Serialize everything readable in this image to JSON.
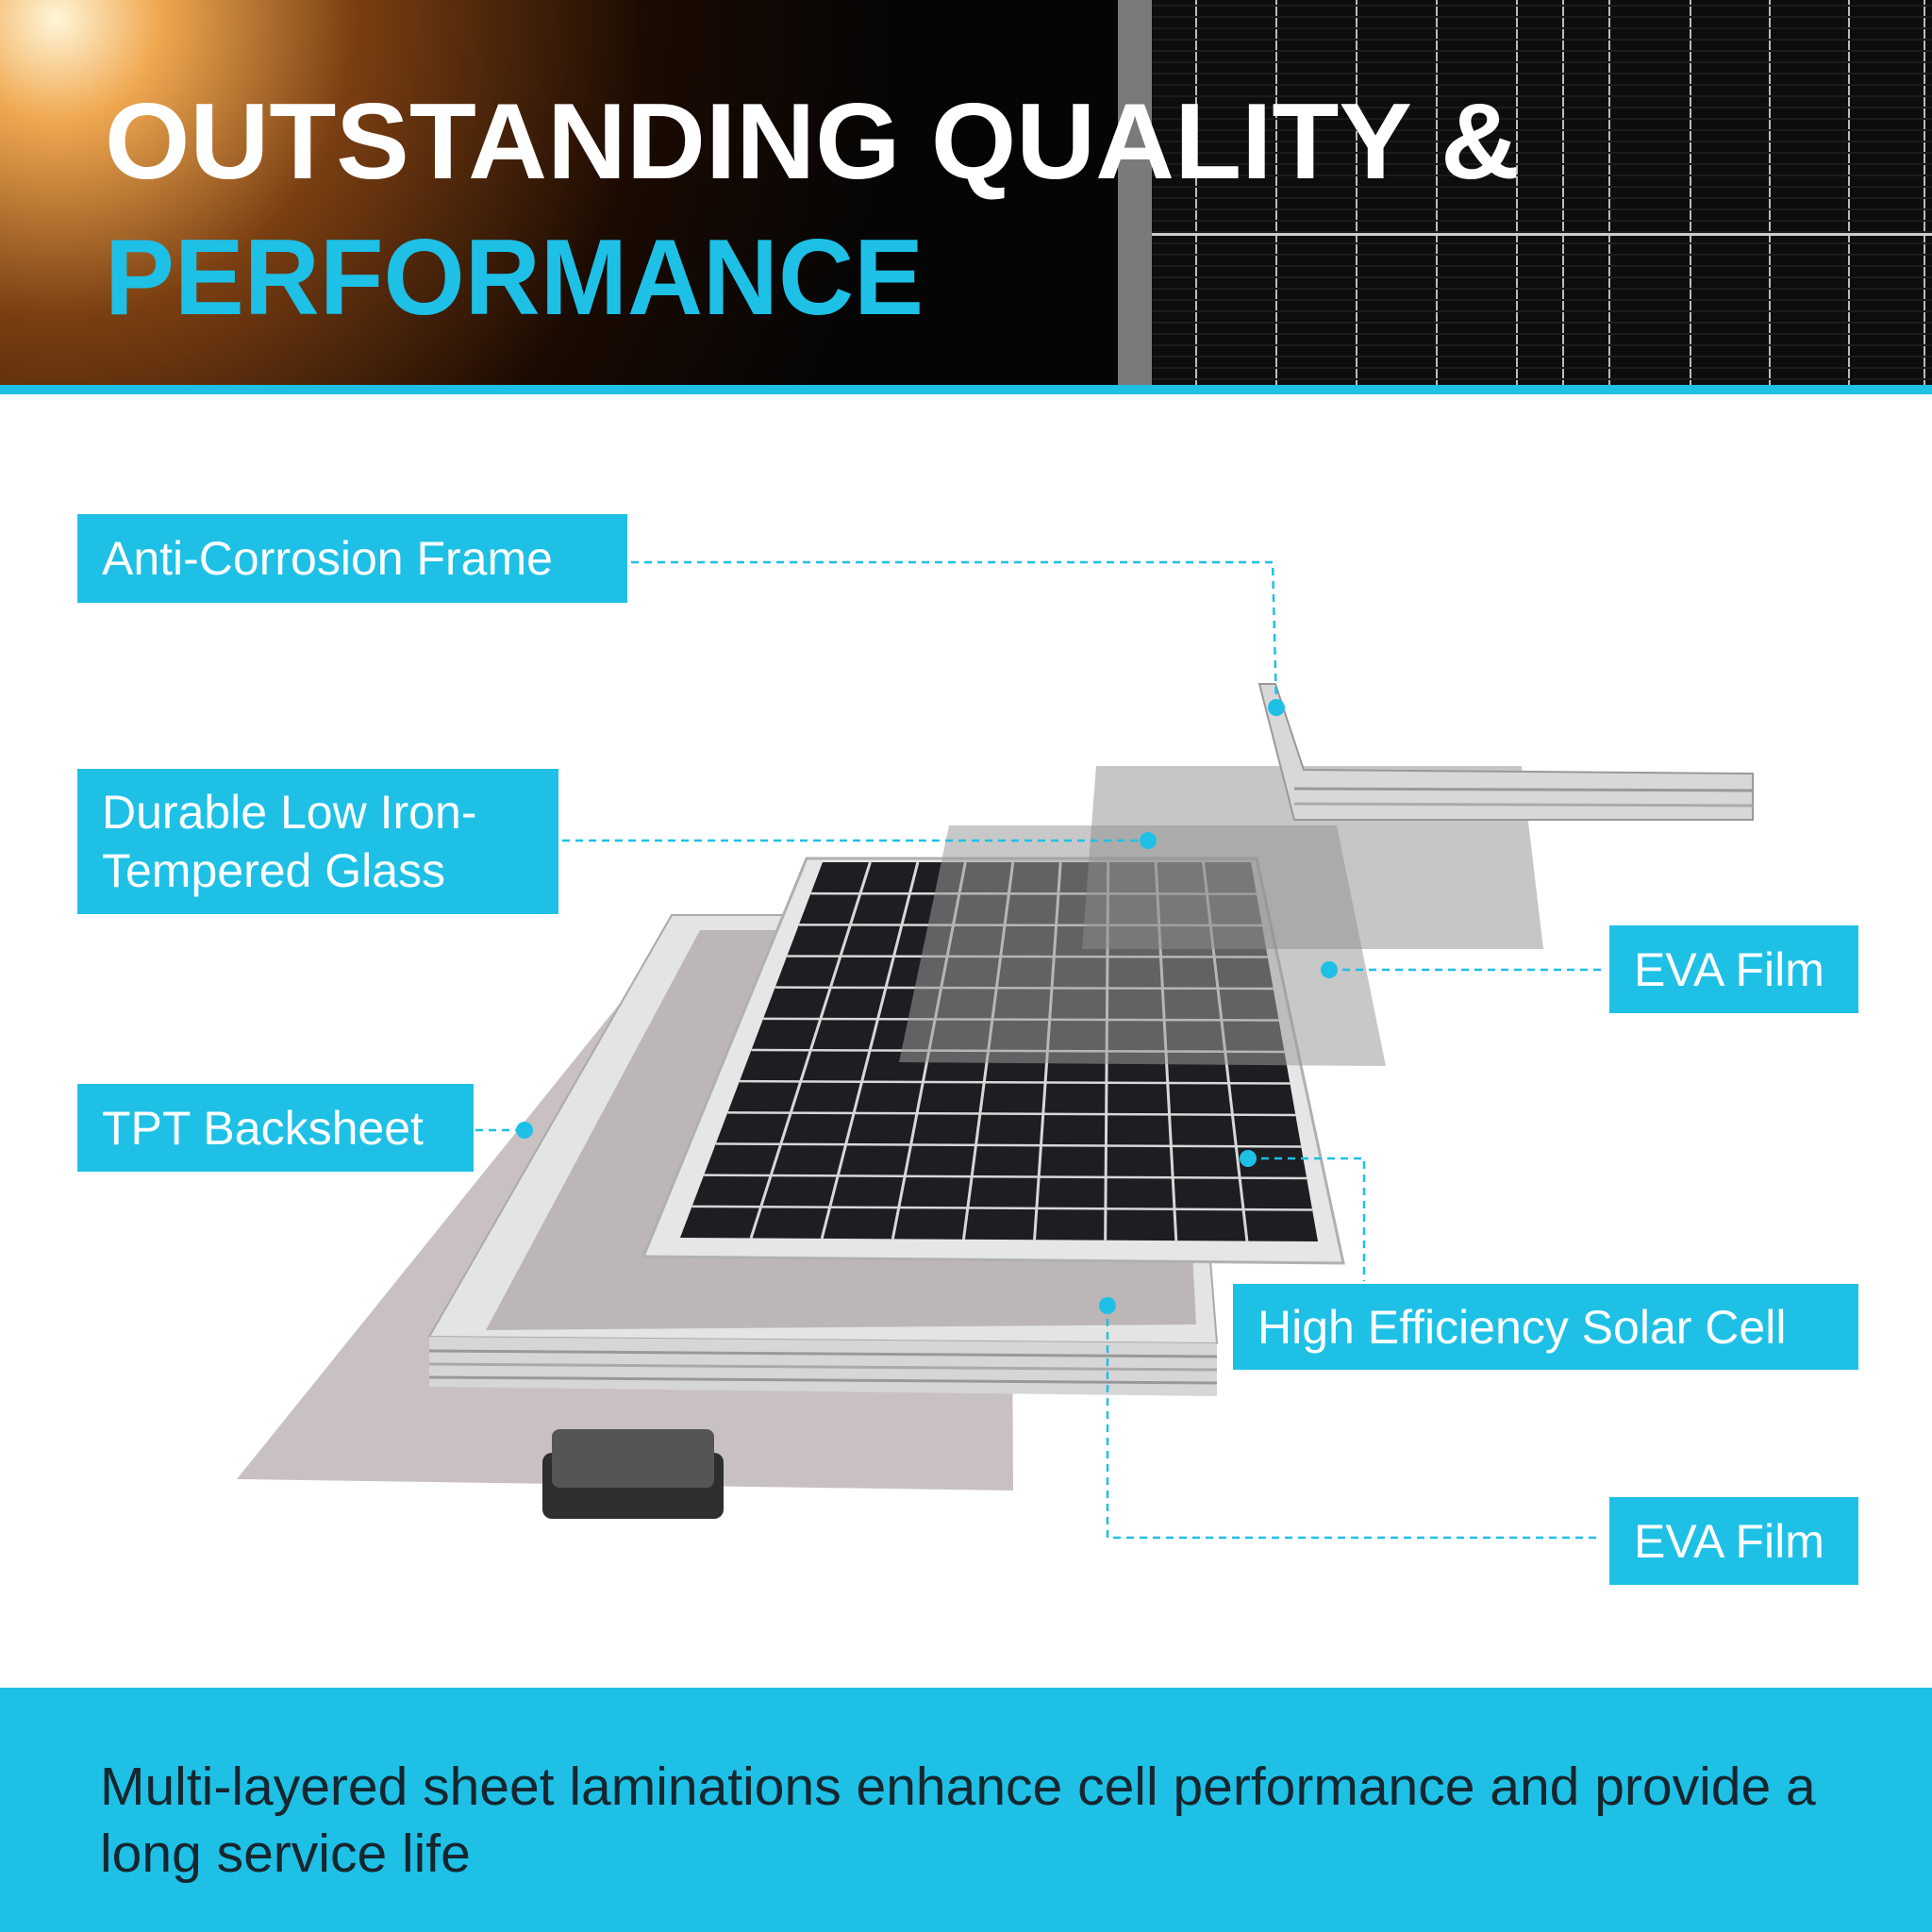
{
  "header": {
    "title_line1": "OUTSTANDING QUALITY &",
    "title_line2": "PERFORMANCE"
  },
  "labels": {
    "frame": "Anti-Corrosion Frame",
    "glass_line1": "Durable Low Iron-",
    "glass_line2": "Tempered Glass",
    "backsheet": "TPT Backsheet",
    "eva_top": "EVA Film",
    "solar_cell": "High Efficiency Solar Cell",
    "eva_bottom": "EVA Film"
  },
  "footer": {
    "text": "Multi-layered sheet laminations enhance cell performance and provide a long service life"
  },
  "colors": {
    "accent": "#1ec0e6",
    "header_bg": "#050505",
    "title_white": "#ffffff",
    "footer_text": "#16262e"
  }
}
